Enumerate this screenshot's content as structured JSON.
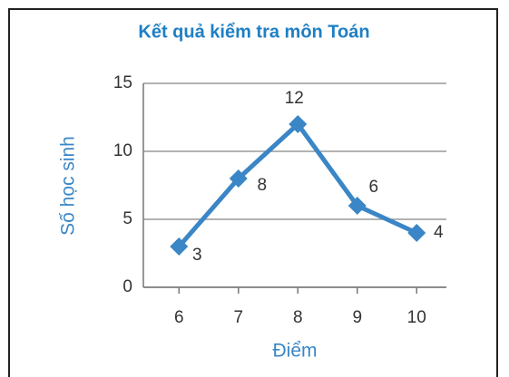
{
  "chart_data": {
    "type": "line",
    "title": "Kết quả kiểm tra môn Toán",
    "x_label": "Điểm",
    "y_label": "Số học sinh",
    "x": [
      6,
      7,
      8,
      9,
      10
    ],
    "series": [
      {
        "name": "Số học sinh",
        "color": "#3a86c6",
        "values": [
          3,
          8,
          12,
          6,
          4
        ]
      }
    ],
    "xlim": [
      5.4,
      10.5
    ],
    "xticks": [
      6,
      7,
      8,
      9,
      10
    ],
    "ylim": [
      0,
      15
    ],
    "yticks": [
      0,
      5,
      10,
      15
    ],
    "grid": true
  }
}
